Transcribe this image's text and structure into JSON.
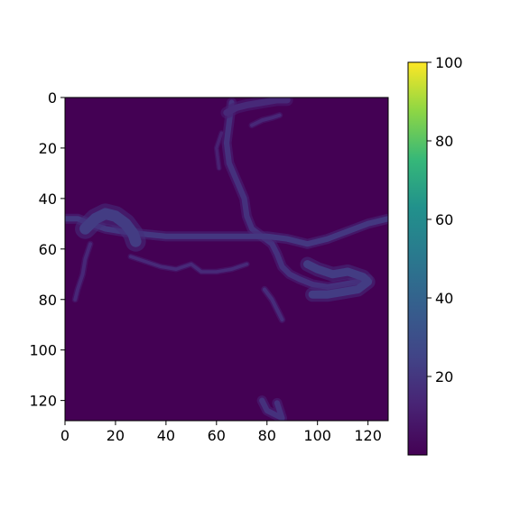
{
  "chart_data": {
    "type": "heatmap",
    "title": "",
    "xlabel": "",
    "ylabel": "",
    "width": 128,
    "height": 128,
    "xlim": [
      0,
      128
    ],
    "ylim": [
      128,
      0
    ],
    "xticks": [
      0,
      20,
      40,
      60,
      80,
      100,
      120
    ],
    "yticks": [
      0,
      20,
      40,
      60,
      80,
      100,
      120
    ],
    "x_tick_labels": [
      "0",
      "20",
      "40",
      "60",
      "80",
      "100",
      "120"
    ],
    "y_tick_labels": [
      "0",
      "20",
      "40",
      "60",
      "80",
      "100",
      "120"
    ],
    "colormap": "viridis",
    "background_value": 0,
    "colorbar": {
      "min": 0,
      "max": 100,
      "ticks": [
        20,
        40,
        60,
        80,
        100
      ],
      "tick_labels": [
        "20",
        "40",
        "60",
        "80",
        "100"
      ]
    },
    "features": [
      {
        "name": "vertical-filament",
        "points": [
          [
            66,
            2
          ],
          [
            65,
            10
          ],
          [
            64,
            18
          ],
          [
            65,
            26
          ],
          [
            68,
            33
          ],
          [
            71,
            40
          ],
          [
            72,
            47
          ],
          [
            74,
            52
          ],
          [
            78,
            55
          ],
          [
            82,
            58
          ],
          [
            84,
            62
          ],
          [
            86,
            67
          ],
          [
            89,
            70
          ],
          [
            93,
            72
          ],
          [
            98,
            74
          ],
          [
            104,
            75
          ],
          [
            110,
            74
          ],
          [
            116,
            73
          ],
          [
            120,
            72
          ]
        ],
        "value": 18,
        "width": 2.2
      },
      {
        "name": "top-cluster-a",
        "points": [
          [
            64,
            6
          ],
          [
            68,
            4
          ],
          [
            72,
            3
          ],
          [
            78,
            2
          ],
          [
            84,
            1
          ],
          [
            88,
            1
          ]
        ],
        "value": 15,
        "width": 2.6
      },
      {
        "name": "top-cluster-b",
        "points": [
          [
            74,
            11
          ],
          [
            78,
            9
          ],
          [
            82,
            8
          ],
          [
            85,
            7
          ]
        ],
        "value": 14,
        "width": 1.4
      },
      {
        "name": "upper-hook",
        "points": [
          [
            62,
            14
          ],
          [
            60,
            20
          ],
          [
            61,
            28
          ]
        ],
        "value": 12,
        "width": 1.2
      },
      {
        "name": "horizontal-filament",
        "points": [
          [
            0,
            48
          ],
          [
            5,
            48
          ],
          [
            10,
            50
          ],
          [
            16,
            52
          ],
          [
            22,
            53
          ],
          [
            30,
            54
          ],
          [
            40,
            55
          ],
          [
            50,
            55
          ],
          [
            60,
            55
          ],
          [
            70,
            55
          ],
          [
            80,
            55
          ],
          [
            88,
            56
          ],
          [
            96,
            58
          ],
          [
            104,
            56
          ],
          [
            112,
            53
          ],
          [
            120,
            50
          ],
          [
            128,
            48
          ]
        ],
        "value": 20,
        "width": 2.2
      },
      {
        "name": "left-blob",
        "points": [
          [
            8,
            52
          ],
          [
            12,
            48
          ],
          [
            16,
            46
          ],
          [
            20,
            47
          ],
          [
            24,
            50
          ],
          [
            27,
            54
          ],
          [
            28,
            57
          ]
        ],
        "value": 22,
        "width": 4.5
      },
      {
        "name": "left-tendril",
        "points": [
          [
            10,
            58
          ],
          [
            8,
            64
          ],
          [
            7,
            70
          ],
          [
            5,
            76
          ],
          [
            4,
            80
          ]
        ],
        "value": 14,
        "width": 1.4
      },
      {
        "name": "right-cluster",
        "points": [
          [
            96,
            66
          ],
          [
            100,
            68
          ],
          [
            106,
            70
          ],
          [
            112,
            69
          ],
          [
            118,
            71
          ],
          [
            120,
            73
          ],
          [
            116,
            76
          ],
          [
            110,
            77
          ],
          [
            104,
            78
          ],
          [
            98,
            78
          ]
        ],
        "value": 22,
        "width": 3.2
      },
      {
        "name": "middle-wisps",
        "points": [
          [
            26,
            63
          ],
          [
            32,
            65
          ],
          [
            38,
            67
          ],
          [
            44,
            68
          ],
          [
            50,
            66
          ],
          [
            54,
            69
          ],
          [
            60,
            69
          ],
          [
            66,
            68
          ],
          [
            72,
            66
          ]
        ],
        "value": 15,
        "width": 1.3
      },
      {
        "name": "lower-branch",
        "points": [
          [
            79,
            76
          ],
          [
            82,
            80
          ],
          [
            84,
            84
          ],
          [
            86,
            88
          ]
        ],
        "value": 16,
        "width": 1.5
      },
      {
        "name": "bottom-fragment",
        "points": [
          [
            78,
            120
          ],
          [
            80,
            124
          ],
          [
            84,
            126
          ],
          [
            86,
            127
          ],
          [
            84,
            121
          ]
        ],
        "value": 18,
        "width": 2.2
      }
    ]
  }
}
